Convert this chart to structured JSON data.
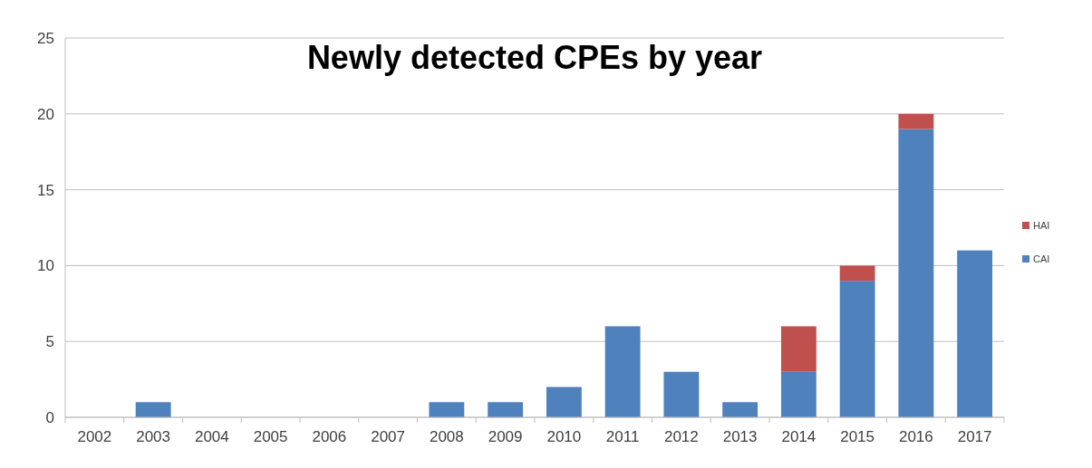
{
  "chart_data": {
    "type": "bar",
    "title": "Newly detected CPEs by year",
    "categories": [
      "2002",
      "2003",
      "2004",
      "2005",
      "2006",
      "2007",
      "2008",
      "2009",
      "2010",
      "2011",
      "2012",
      "2013",
      "2014",
      "2015",
      "2016",
      "2017"
    ],
    "stacked": true,
    "series": [
      {
        "name": "CAI",
        "color": "#4f81bd",
        "values": [
          0,
          1,
          0,
          0,
          0,
          0,
          1,
          1,
          2,
          6,
          3,
          1,
          3,
          9,
          19,
          11
        ]
      },
      {
        "name": "HAI",
        "color": "#c0504d",
        "values": [
          0,
          0,
          0,
          0,
          0,
          0,
          0,
          0,
          0,
          0,
          0,
          0,
          3,
          1,
          1,
          0
        ]
      }
    ],
    "ylim": [
      0,
      25
    ],
    "yticks": [
      0,
      5,
      10,
      15,
      20,
      25
    ],
    "grid": "y",
    "legend": "right"
  }
}
